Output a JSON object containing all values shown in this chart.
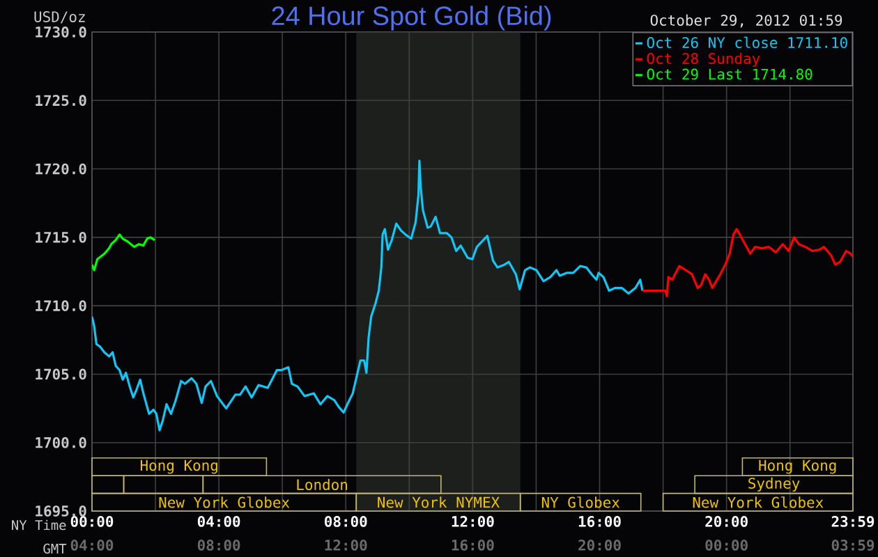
{
  "chart_data": {
    "type": "line",
    "title": "24 Hour Spot Gold (Bid)",
    "subtitle": "October 29, 2012 01:59",
    "xlabel": "NY Time",
    "x2label": "GMT",
    "ylabel": "USD/oz",
    "xlim": [
      0,
      23.9833
    ],
    "ylim": [
      1695,
      1730
    ],
    "xticks": [
      {
        "value": 0,
        "label": "00:00"
      },
      {
        "value": 2,
        "label": null
      },
      {
        "value": 4,
        "label": "04:00"
      },
      {
        "value": 6,
        "label": null
      },
      {
        "value": 8,
        "label": "08:00"
      },
      {
        "value": 10,
        "label": null
      },
      {
        "value": 12,
        "label": "12:00"
      },
      {
        "value": 14,
        "label": null
      },
      {
        "value": 16,
        "label": "16:00"
      },
      {
        "value": 18,
        "label": null
      },
      {
        "value": 20,
        "label": "20:00"
      },
      {
        "value": 22,
        "label": null
      },
      {
        "value": 23.9833,
        "label": "23:59"
      }
    ],
    "x2lim": [
      "2012-10-29T04:00",
      "2012-10-30T03:59"
    ],
    "x2ticks": [
      {
        "value": "2012-10-29T04:00",
        "label": "04:00"
      },
      {
        "value": "2012-10-29T08:00",
        "label": "08:00"
      },
      {
        "value": "2012-10-29T12:00",
        "label": "12:00"
      },
      {
        "value": "2012-10-29T16:00",
        "label": "16:00"
      },
      {
        "value": "2012-10-29T20:00",
        "label": "20:00"
      },
      {
        "value": "2012-10-30T00:00",
        "label": "00:00"
      },
      {
        "value": "2012-10-30T03:59",
        "label": "03:59"
      }
    ],
    "yticks": [
      {
        "value": 1695,
        "label": "1695.0"
      },
      {
        "value": 1700,
        "label": "1700.0"
      },
      {
        "value": 1705,
        "label": "1705.0"
      },
      {
        "value": 1710,
        "label": "1710.0"
      },
      {
        "value": 1715,
        "label": "1715.0"
      },
      {
        "value": 1720,
        "label": "1720.0"
      },
      {
        "value": 1725,
        "label": "1725.0"
      },
      {
        "value": 1730,
        "label": "1730.0"
      }
    ],
    "grid": true,
    "legend": "top right",
    "series": [
      {
        "name": "Oct 26 NY close 1711.10",
        "color": "#10c8f8",
        "x": [
          0,
          0.07,
          0.14,
          0.26,
          0.39,
          0.54,
          0.65,
          0.75,
          0.87,
          0.97,
          1.07,
          1.19,
          1.3,
          1.41,
          1.52,
          1.62,
          1.74,
          1.8,
          1.94,
          2.03,
          2.13,
          2.23,
          2.35,
          2.49,
          2.64,
          2.81,
          2.93,
          3.14,
          3.29,
          3.46,
          3.58,
          3.75,
          3.94,
          4.23,
          4.52,
          4.67,
          4.84,
          5.03,
          5.25,
          5.54,
          5.83,
          5.97,
          6.19,
          6.3,
          6.48,
          6.7,
          6.99,
          7.2,
          7.42,
          7.64,
          7.78,
          7.93,
          8.07,
          8.22,
          8.36,
          8.46,
          8.58,
          8.65,
          8.72,
          8.8,
          8.94,
          9.04,
          9.12,
          9.16,
          9.23,
          9.33,
          9.45,
          9.59,
          9.74,
          9.88,
          10.06,
          10.2,
          10.29,
          10.32,
          10.36,
          10.43,
          10.58,
          10.68,
          10.83,
          10.97,
          11.19,
          11.33,
          11.48,
          11.62,
          11.84,
          11.99,
          12.13,
          12.46,
          12.64,
          12.78,
          13.0,
          13.14,
          13.36,
          13.48,
          13.65,
          13.8,
          14.01,
          14.23,
          14.45,
          14.64,
          14.74,
          14.96,
          15.17,
          15.39,
          15.58,
          15.75,
          15.9,
          15.97,
          16.12,
          16.3,
          16.48,
          16.7,
          16.91,
          17.13,
          17.28,
          17.35
        ],
        "values": [
          1709.2,
          1708.5,
          1707.2,
          1707.0,
          1706.6,
          1706.3,
          1706.6,
          1705.6,
          1705.3,
          1704.6,
          1705.1,
          1704.1,
          1703.3,
          1703.9,
          1704.6,
          1703.6,
          1702.6,
          1702.1,
          1702.4,
          1702.1,
          1700.9,
          1701.6,
          1702.8,
          1702.1,
          1703.1,
          1704.5,
          1704.3,
          1704.7,
          1704.3,
          1702.9,
          1704.1,
          1704.5,
          1703.4,
          1702.5,
          1703.5,
          1703.5,
          1704.1,
          1703.3,
          1704.2,
          1704.0,
          1705.3,
          1705.3,
          1705.5,
          1704.3,
          1704.1,
          1703.4,
          1703.6,
          1702.8,
          1703.4,
          1703.1,
          1702.6,
          1702.2,
          1702.9,
          1703.6,
          1705.0,
          1706.0,
          1706.0,
          1705.1,
          1707.7,
          1709.2,
          1710.2,
          1711.1,
          1712.8,
          1715.2,
          1715.6,
          1714.1,
          1714.8,
          1716.0,
          1715.5,
          1715.2,
          1714.9,
          1716.1,
          1718.1,
          1720.6,
          1718.7,
          1717.0,
          1715.7,
          1715.8,
          1716.5,
          1715.3,
          1715.3,
          1715.0,
          1714.0,
          1714.4,
          1713.5,
          1713.4,
          1714.3,
          1715.1,
          1713.3,
          1712.8,
          1713.0,
          1713.2,
          1712.3,
          1711.2,
          1712.6,
          1712.8,
          1712.6,
          1711.8,
          1712.1,
          1712.6,
          1712.2,
          1712.4,
          1712.4,
          1712.9,
          1712.8,
          1712.3,
          1711.9,
          1712.4,
          1712.1,
          1711.1,
          1711.3,
          1711.3,
          1710.9,
          1711.3,
          1711.9,
          1711.1
        ]
      },
      {
        "name": "Oct 28 Sunday",
        "color": "#ff0000",
        "x": [
          17.35,
          18.07,
          18.12,
          18.17,
          18.29,
          18.51,
          18.72,
          18.91,
          19.09,
          19.2,
          19.33,
          19.45,
          19.55,
          19.78,
          19.96,
          20.1,
          20.22,
          20.32,
          20.42,
          20.61,
          20.75,
          20.9,
          21.12,
          21.33,
          21.55,
          21.77,
          21.96,
          22.13,
          22.28,
          22.49,
          22.71,
          22.93,
          23.07,
          23.29,
          23.43,
          23.58,
          23.77,
          23.91,
          23.98
        ],
        "values": [
          1711.1,
          1711.1,
          1710.7,
          1712.1,
          1711.9,
          1712.9,
          1712.6,
          1712.3,
          1711.3,
          1711.5,
          1712.3,
          1711.9,
          1711.3,
          1712.2,
          1713.0,
          1713.8,
          1715.2,
          1715.6,
          1715.2,
          1714.4,
          1713.8,
          1714.3,
          1714.2,
          1714.3,
          1713.9,
          1714.5,
          1714.0,
          1715.0,
          1714.5,
          1714.3,
          1714.0,
          1714.1,
          1714.3,
          1713.7,
          1713.0,
          1713.2,
          1714.0,
          1713.8,
          1713.6
        ]
      },
      {
        "name": "Oct 29 Last 1714.80",
        "color": "#00ff00",
        "x": [
          0,
          0.07,
          0.17,
          0.39,
          0.54,
          0.61,
          0.75,
          0.87,
          0.97,
          1.12,
          1.33,
          1.48,
          1.62,
          1.74,
          1.84,
          1.91,
          1.98
        ],
        "values": [
          1713.0,
          1712.6,
          1713.4,
          1713.8,
          1714.2,
          1714.5,
          1714.8,
          1715.2,
          1714.9,
          1714.7,
          1714.3,
          1714.5,
          1714.4,
          1714.9,
          1715.0,
          1714.9,
          1714.8
        ]
      }
    ],
    "bands": [
      {
        "axis": "x",
        "from": 8.33,
        "to": 13.5,
        "color": "#1c1f1c"
      }
    ],
    "annotations": [
      "Hong Kong",
      "Hong Kong",
      "London",
      "Sydney",
      "New York Globex",
      "New York NYMEX",
      "NY Globex",
      "New York Globex"
    ]
  }
}
